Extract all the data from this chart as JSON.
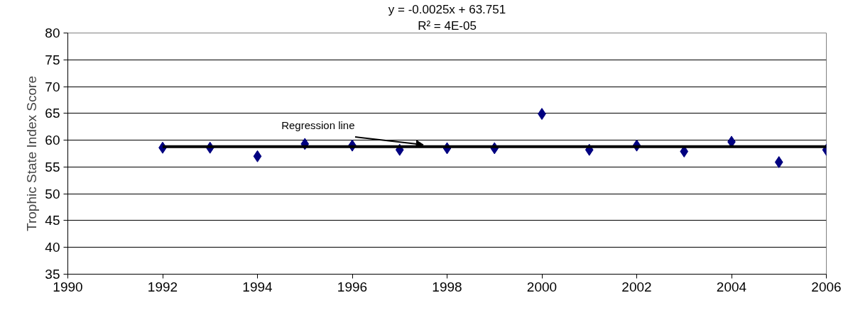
{
  "chart_data": {
    "type": "scatter",
    "ylabel": "Trophic State Index Score",
    "x": [
      1992,
      1993,
      1994,
      1995,
      1996,
      1997,
      1998,
      1999,
      2000,
      2001,
      2002,
      2003,
      2004,
      2005,
      2006
    ],
    "series": [
      {
        "color": "#000080",
        "marker": "diamond",
        "values": [
          58.6,
          58.6,
          57.0,
          59.3,
          59.0,
          58.2,
          58.5,
          58.5,
          64.9,
          58.2,
          59.0,
          57.9,
          59.7,
          55.9,
          58.2
        ]
      },
      {
        "type": "line",
        "color": "#000000",
        "marker": "none",
        "line_style": "solid",
        "x": [
          1992,
          2006
        ],
        "values": [
          58.8,
          58.8
        ]
      }
    ],
    "xlim": [
      1990,
      2006
    ],
    "xticks": [
      1990,
      1992,
      1994,
      1996,
      1998,
      2000,
      2002,
      2004,
      2006
    ],
    "ylim": [
      35,
      80
    ],
    "yticks": [
      35,
      40,
      45,
      50,
      55,
      60,
      65,
      70,
      75,
      80
    ],
    "grid": "y",
    "annotations": [
      "y = -0.0025x + 63.751",
      "R² = 4E-05",
      {
        "text": "Regression line",
        "x": 1997.5,
        "y": 58.8
      }
    ]
  }
}
